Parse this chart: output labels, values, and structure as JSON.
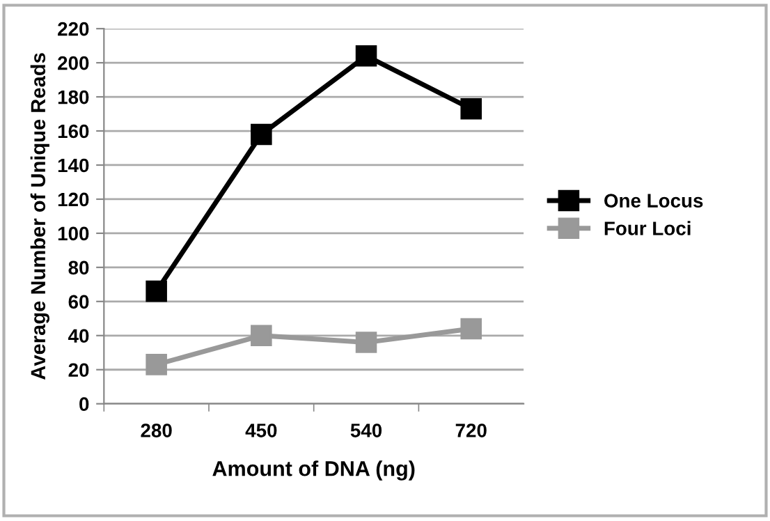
{
  "chart_data": {
    "type": "line",
    "xlabel": "Amount of DNA (ng)",
    "ylabel": "Average Number of Unique Reads",
    "categories": [
      "280",
      "450",
      "540",
      "720"
    ],
    "series": [
      {
        "name": "One Locus",
        "color": "#000000",
        "values": [
          66,
          158,
          204,
          173
        ]
      },
      {
        "name": "Four Loci",
        "color": "#999999",
        "values": [
          23,
          40,
          36,
          44
        ]
      }
    ],
    "ylim": [
      0,
      220
    ],
    "yticks": [
      0,
      20,
      40,
      60,
      80,
      100,
      120,
      140,
      160,
      180,
      200,
      220
    ],
    "grid": "y",
    "legend": "right",
    "marker": "square",
    "line_style": "solid"
  }
}
